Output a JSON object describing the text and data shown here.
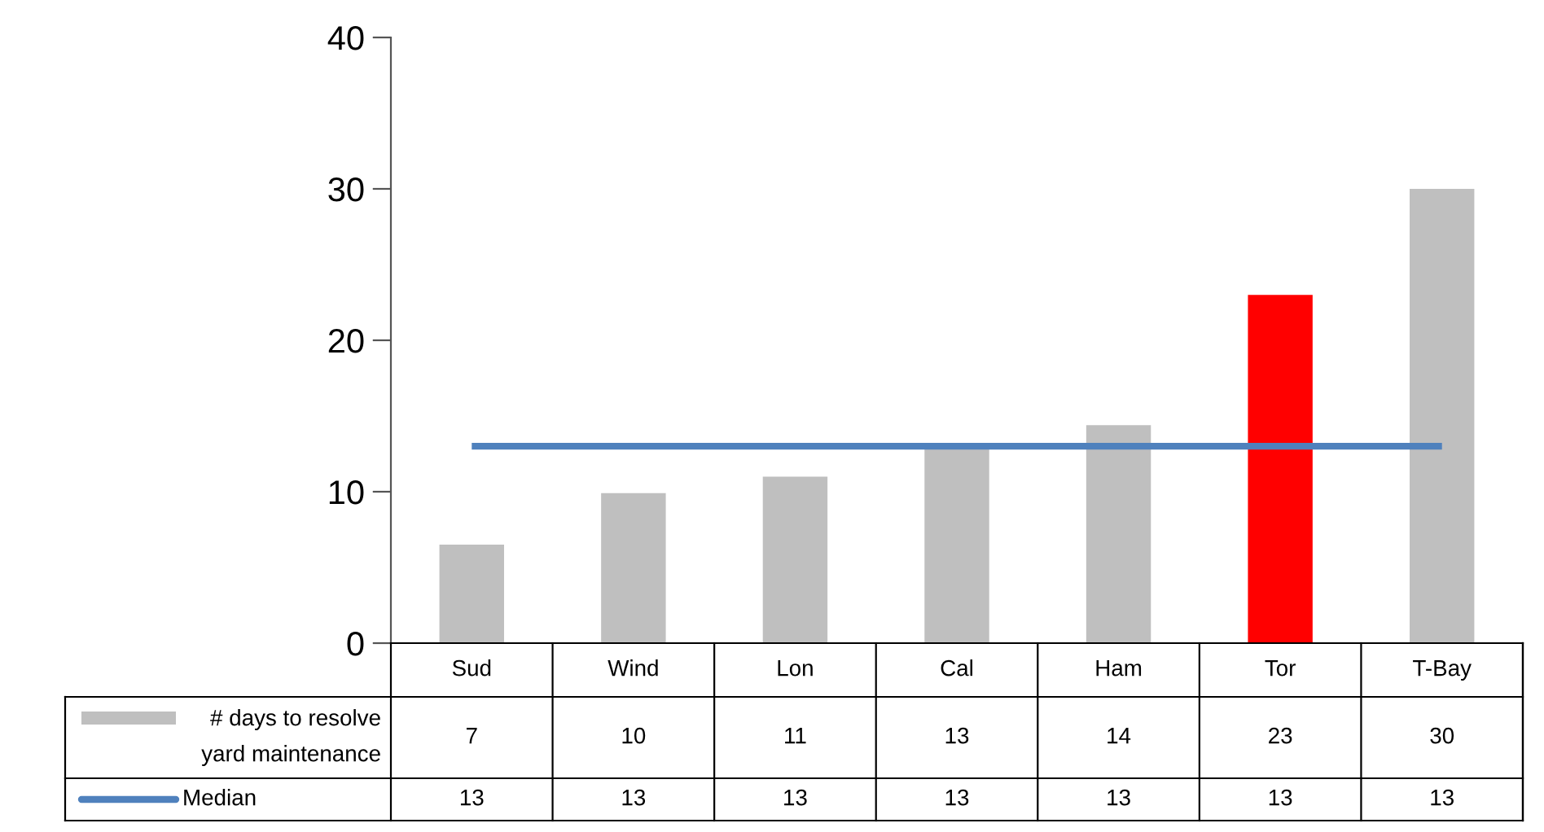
{
  "chart_data": {
    "type": "bar",
    "categories": [
      "Sud",
      "Wind",
      "Lon",
      "Cal",
      "Ham",
      "Tor",
      "T-Bay"
    ],
    "series": [
      {
        "name": "# days to resolve\nyard maintenance",
        "color": "#bfbfbf",
        "colors": [
          "#bfbfbf",
          "#bfbfbf",
          "#bfbfbf",
          "#bfbfbf",
          "#bfbfbf",
          "#ff0000",
          "#bfbfbf"
        ],
        "values": [
          6.5,
          9.9,
          11,
          12.9,
          14.4,
          23,
          30
        ],
        "value_labels": [
          "7",
          "10",
          "11",
          "13",
          "14",
          "23",
          "30"
        ]
      },
      {
        "name": "Median",
        "type": "line",
        "color": "#4f81bd",
        "values": [
          13,
          13,
          13,
          13,
          13,
          13,
          13
        ],
        "value_labels": [
          "13",
          "13",
          "13",
          "13",
          "13",
          "13",
          "13"
        ]
      }
    ],
    "ylim": [
      0,
      40
    ],
    "yticks": [
      0,
      10,
      20,
      30,
      40
    ],
    "grid": false,
    "legend": "bottom left",
    "marker": "none",
    "line_style": "solid"
  }
}
